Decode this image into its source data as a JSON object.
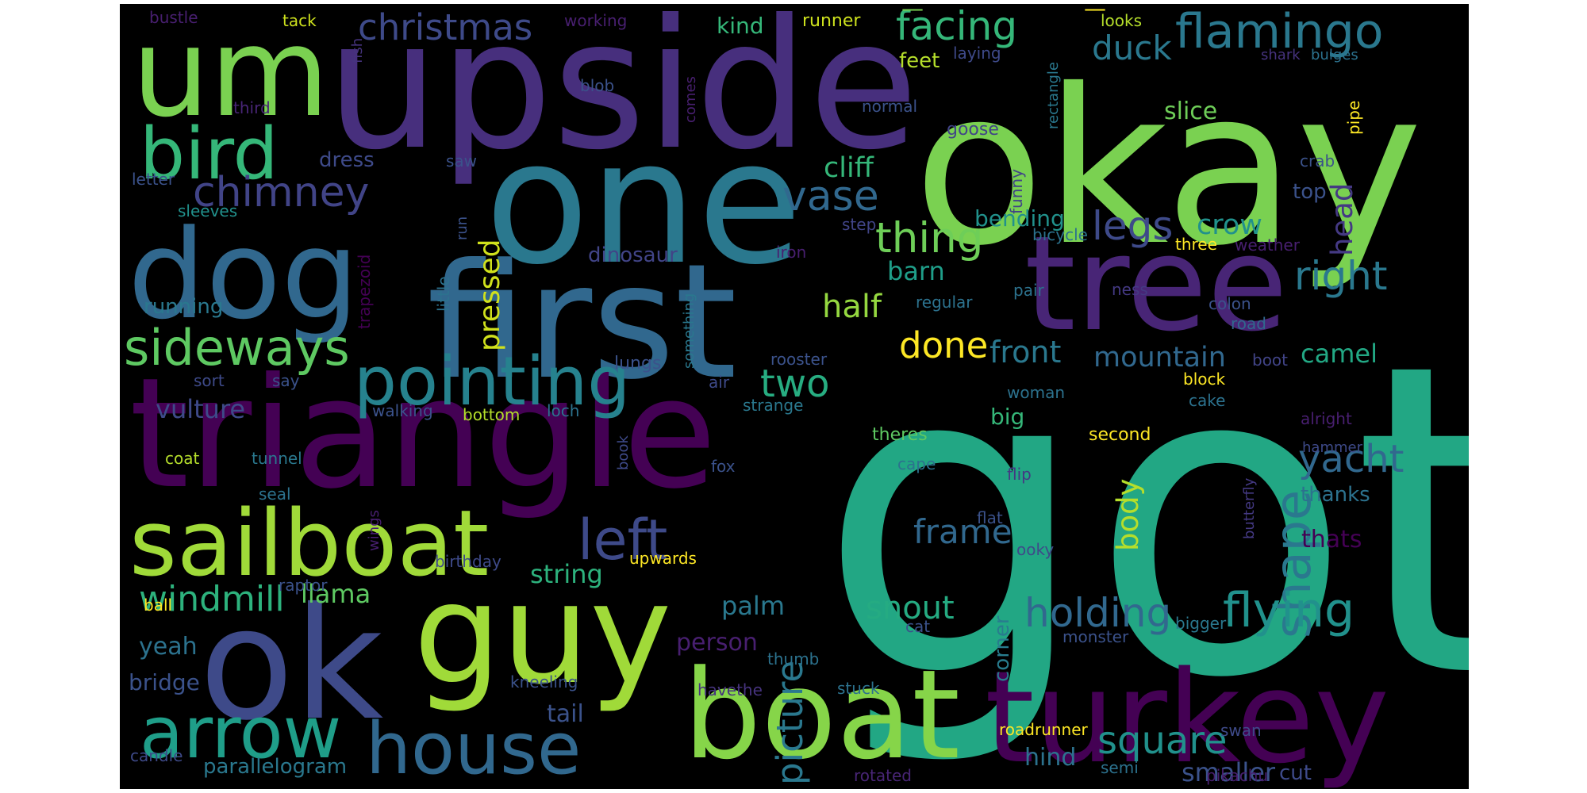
{
  "words": [
    {
      "id": "got",
      "text": "got",
      "color": "#22a784"
    },
    {
      "id": "okay",
      "text": "okay",
      "color": "#7ad151"
    },
    {
      "id": "upside",
      "text": "upside",
      "color": "#472f7d"
    },
    {
      "id": "one",
      "text": "one",
      "color": "#2a788e"
    },
    {
      "id": "first",
      "text": "first",
      "color": "#31688e"
    },
    {
      "id": "triangle",
      "text": "triangle",
      "color": "#440154"
    },
    {
      "id": "tree",
      "text": "tree",
      "color": "#482576"
    },
    {
      "id": "guy",
      "text": "guy",
      "color": "#a0da39"
    },
    {
      "id": "ok",
      "text": "ok",
      "color": "#3e4a89"
    },
    {
      "id": "turkey",
      "text": "turkey",
      "color": "#440154"
    },
    {
      "id": "boat",
      "text": "boat",
      "color": "#86d549"
    },
    {
      "id": "dog",
      "text": "dog",
      "color": "#31688e"
    },
    {
      "id": "um",
      "text": "um",
      "color": "#7ad151"
    },
    {
      "id": "sailboat",
      "text": "sailboat",
      "color": "#a0da39"
    },
    {
      "id": "bird",
      "text": "bird",
      "color": "#35b779"
    },
    {
      "id": "arrow",
      "text": "arrow",
      "color": "#1f9e89"
    },
    {
      "id": "house",
      "text": "house",
      "color": "#31688e"
    },
    {
      "id": "pointing",
      "text": "pointing",
      "color": "#26828e"
    },
    {
      "id": "sideways",
      "text": "sideways",
      "color": "#5ec962"
    },
    {
      "id": "flamingo",
      "text": "flamingo",
      "color": "#2a788e"
    },
    {
      "id": "shape",
      "text": "shape",
      "color": "#2a788e"
    },
    {
      "id": "left",
      "text": "left",
      "color": "#3e4a89"
    },
    {
      "id": "chimney",
      "text": "chimney",
      "color": "#414487"
    },
    {
      "id": "christmas",
      "text": "christmas",
      "color": "#3e4a89"
    },
    {
      "id": "facing",
      "text": "facing",
      "color": "#35b779"
    },
    {
      "id": "flying",
      "text": "flying",
      "color": "#21918c"
    },
    {
      "id": "holding",
      "text": "holding",
      "color": "#31688e"
    },
    {
      "id": "square",
      "text": "square",
      "color": "#21918c"
    },
    {
      "id": "vase",
      "text": "vase",
      "color": "#31688e"
    },
    {
      "id": "thing",
      "text": "thing",
      "color": "#6ece58"
    },
    {
      "id": "legs",
      "text": "legs",
      "color": "#3e4a89"
    },
    {
      "id": "right",
      "text": "right",
      "color": "#2a788e"
    },
    {
      "id": "two",
      "text": "two",
      "color": "#27ad81"
    },
    {
      "id": "windmill",
      "text": "windmill",
      "color": "#2db27d"
    },
    {
      "id": "yacht",
      "text": "yacht",
      "color": "#31688e"
    },
    {
      "id": "picture",
      "text": "picture",
      "color": "#2a788e"
    },
    {
      "id": "done",
      "text": "done",
      "color": "#fde725"
    },
    {
      "id": "duck",
      "text": "duck",
      "color": "#2a788e"
    },
    {
      "id": "pressed",
      "text": "pressed",
      "color": "#d0e11c"
    },
    {
      "id": "frame",
      "text": "frame",
      "color": "#31688e"
    },
    {
      "id": "half",
      "text": "half",
      "color": "#95d840"
    },
    {
      "id": "snout",
      "text": "snout",
      "color": "#25ab82"
    },
    {
      "id": "front",
      "text": "front",
      "color": "#2a788e"
    },
    {
      "id": "mountain",
      "text": "mountain",
      "color": "#31688e"
    },
    {
      "id": "vulture",
      "text": "vulture",
      "color": "#3e4a89"
    },
    {
      "id": "string",
      "text": "string",
      "color": "#2db27d"
    },
    {
      "id": "body",
      "text": "body",
      "color": "#b5de2b"
    },
    {
      "id": "llama",
      "text": "llama",
      "color": "#5ec962"
    },
    {
      "id": "head",
      "text": "head",
      "color": "#443983"
    },
    {
      "id": "cliff",
      "text": "cliff",
      "color": "#35b779"
    },
    {
      "id": "barn",
      "text": "barn",
      "color": "#1f9e89"
    },
    {
      "id": "crow",
      "text": "crow",
      "color": "#21918c"
    },
    {
      "id": "camel",
      "text": "camel",
      "color": "#22a884"
    },
    {
      "id": "palm",
      "text": "palm",
      "color": "#2a788e"
    },
    {
      "id": "person",
      "text": "person",
      "color": "#481f70"
    },
    {
      "id": "corner",
      "text": "corner",
      "color": "#287c8e"
    },
    {
      "id": "smaller",
      "text": "smaller",
      "color": "#3b528b"
    },
    {
      "id": "hind",
      "text": "hind",
      "color": "#2c728e"
    },
    {
      "id": "running",
      "text": "running",
      "color": "#2a788e"
    },
    {
      "id": "dinosaur",
      "text": "dinosaur",
      "color": "#414487"
    },
    {
      "id": "bending",
      "text": "bending",
      "color": "#21918c"
    },
    {
      "id": "dress",
      "text": "dress",
      "color": "#3e4a89"
    },
    {
      "id": "slice",
      "text": "slice",
      "color": "#6ece58"
    },
    {
      "id": "tail",
      "text": "tail",
      "color": "#3b528b"
    },
    {
      "id": "parallelogram",
      "text": "parallelogram",
      "color": "#2a788e"
    },
    {
      "id": "big",
      "text": "big",
      "color": "#35b779"
    },
    {
      "id": "bridge",
      "text": "bridge",
      "color": "#3b528b"
    },
    {
      "id": "yeah",
      "text": "yeah",
      "color": "#2c728e"
    },
    {
      "id": "feet",
      "text": "feet",
      "color": "#b5de2b"
    },
    {
      "id": "thats",
      "text": "thats",
      "color": "#440154"
    },
    {
      "id": "thanks",
      "text": "thanks",
      "color": "#2c728e"
    },
    {
      "id": "top",
      "text": "top",
      "color": "#3b528b"
    },
    {
      "id": "kind",
      "text": "kind",
      "color": "#35b779"
    },
    {
      "id": "runner",
      "text": "runner",
      "color": "#cde11d"
    },
    {
      "id": "laying",
      "text": "laying",
      "color": "#3e4a89"
    },
    {
      "id": "goose",
      "text": "goose",
      "color": "#414487"
    },
    {
      "id": "normal",
      "text": "normal",
      "color": "#3b528b"
    },
    {
      "id": "looks",
      "text": "looks",
      "color": "#b5de2b"
    },
    {
      "id": "shark",
      "text": "shark",
      "color": "#46337e"
    },
    {
      "id": "bulges",
      "text": "bulges",
      "color": "#2c728e"
    },
    {
      "id": "crab",
      "text": "crab",
      "color": "#3b528b"
    },
    {
      "id": "pipe",
      "text": "pipe",
      "color": "#fde725"
    },
    {
      "id": "working",
      "text": "working",
      "color": "#481f70"
    },
    {
      "id": "bustle",
      "text": "bustle",
      "color": "#481f70"
    },
    {
      "id": "tack",
      "text": "tack",
      "color": "#cde11d"
    },
    {
      "id": "fish",
      "text": "fish",
      "color": "#46337e"
    },
    {
      "id": "blob",
      "text": "blob",
      "color": "#3b528b"
    },
    {
      "id": "comes",
      "text": "comes",
      "color": "#481f70"
    },
    {
      "id": "third",
      "text": "third",
      "color": "#482576"
    },
    {
      "id": "saw",
      "text": "saw",
      "color": "#3b528b"
    },
    {
      "id": "letter",
      "text": "letter",
      "color": "#3b528b"
    },
    {
      "id": "sleeves",
      "text": "sleeves",
      "color": "#21918c"
    },
    {
      "id": "trapezoid",
      "text": "trapezoid",
      "color": "#440154"
    },
    {
      "id": "little",
      "text": "little",
      "color": "#2c728e"
    },
    {
      "id": "run",
      "text": "run",
      "color": "#3b528b"
    },
    {
      "id": "funny",
      "text": "funny",
      "color": "#414487"
    },
    {
      "id": "rectangle",
      "text": "rectangle",
      "color": "#2a788e"
    },
    {
      "id": "step",
      "text": "step",
      "color": "#414487"
    },
    {
      "id": "iron",
      "text": "iron",
      "color": "#481f70"
    },
    {
      "id": "bicycle",
      "text": "bicycle",
      "color": "#2c728e"
    },
    {
      "id": "three",
      "text": "three",
      "color": "#fde725"
    },
    {
      "id": "weather",
      "text": "weather",
      "color": "#481f70"
    },
    {
      "id": "pair",
      "text": "pair",
      "color": "#2c728e"
    },
    {
      "id": "regular",
      "text": "regular",
      "color": "#2c728e"
    },
    {
      "id": "ness",
      "text": "ness",
      "color": "#443983"
    },
    {
      "id": "colon",
      "text": "colon",
      "color": "#3b528b"
    },
    {
      "id": "road",
      "text": "road",
      "color": "#31688e"
    },
    {
      "id": "lungs",
      "text": "lungs",
      "color": "#3b528b"
    },
    {
      "id": "something",
      "text": "something",
      "color": "#2a788e"
    },
    {
      "id": "rooster",
      "text": "rooster",
      "color": "#3b528b"
    },
    {
      "id": "boot",
      "text": "boot",
      "color": "#414487"
    },
    {
      "id": "block",
      "text": "block",
      "color": "#fde725"
    },
    {
      "id": "cake",
      "text": "cake",
      "color": "#2c728e"
    },
    {
      "id": "woman",
      "text": "woman",
      "color": "#2c728e"
    },
    {
      "id": "air",
      "text": "air",
      "color": "#3e4a89"
    },
    {
      "id": "strange",
      "text": "strange",
      "color": "#2a788e"
    },
    {
      "id": "say",
      "text": "say",
      "color": "#3b528b"
    },
    {
      "id": "sort",
      "text": "sort",
      "color": "#3e4a89"
    },
    {
      "id": "walking",
      "text": "walking",
      "color": "#3b528b"
    },
    {
      "id": "bottom",
      "text": "bottom",
      "color": "#b5de2b"
    },
    {
      "id": "loch",
      "text": "loch",
      "color": "#2c728e"
    },
    {
      "id": "theres",
      "text": "theres",
      "color": "#5ec962"
    },
    {
      "id": "second",
      "text": "second",
      "color": "#fde725"
    },
    {
      "id": "alright",
      "text": "alright",
      "color": "#481f70"
    },
    {
      "id": "coat",
      "text": "coat",
      "color": "#b5de2b"
    },
    {
      "id": "tunnel",
      "text": "tunnel",
      "color": "#2a788e"
    },
    {
      "id": "book",
      "text": "book",
      "color": "#3e4a89"
    },
    {
      "id": "fox",
      "text": "fox",
      "color": "#3b528b"
    },
    {
      "id": "cape",
      "text": "cape",
      "color": "#2c728e"
    },
    {
      "id": "flip",
      "text": "flip",
      "color": "#443983"
    },
    {
      "id": "hammer",
      "text": "hammer",
      "color": "#3e4a89"
    },
    {
      "id": "seal",
      "text": "seal",
      "color": "#2c728e"
    },
    {
      "id": "butterfly",
      "text": "butterfly",
      "color": "#443983"
    },
    {
      "id": "flat",
      "text": "flat",
      "color": "#3b528b"
    },
    {
      "id": "ooky",
      "text": "ooky",
      "color": "#3e4a89"
    },
    {
      "id": "wings",
      "text": "wings",
      "color": "#481f70"
    },
    {
      "id": "birthday",
      "text": "birthday",
      "color": "#3e4a89"
    },
    {
      "id": "upwards",
      "text": "upwards",
      "color": "#fde725"
    },
    {
      "id": "raptor",
      "text": "raptor",
      "color": "#3b528b"
    },
    {
      "id": "ball",
      "text": "ball",
      "color": "#fde725"
    },
    {
      "id": "cat",
      "text": "cat",
      "color": "#3b528b"
    },
    {
      "id": "bigger",
      "text": "bigger",
      "color": "#2a788e"
    },
    {
      "id": "monster",
      "text": "monster",
      "color": "#3b528b"
    },
    {
      "id": "thumb",
      "text": "thumb",
      "color": "#2c728e"
    },
    {
      "id": "kneeling",
      "text": "kneeling",
      "color": "#3b528b"
    },
    {
      "id": "havethe",
      "text": "havethe",
      "color": "#46337e"
    },
    {
      "id": "stuck",
      "text": "stuck",
      "color": "#2c728e"
    },
    {
      "id": "roadrunner",
      "text": "roadrunner",
      "color": "#fde725"
    },
    {
      "id": "swan",
      "text": "swan",
      "color": "#3e4a89"
    },
    {
      "id": "candle",
      "text": "candle",
      "color": "#3e4a89"
    },
    {
      "id": "semi",
      "text": "semi",
      "color": "#2c728e"
    },
    {
      "id": "rotated",
      "text": "rotated",
      "color": "#482576"
    },
    {
      "id": "pikachu",
      "text": "pikachu",
      "color": "#481f70"
    },
    {
      "id": "cut",
      "text": "cut",
      "color": "#3e4a89"
    },
    {
      "id": "top-fragment-1",
      "text": "—",
      "color": "#7ad151"
    },
    {
      "id": "top-fragment-2",
      "text": "—",
      "color": "#fde725"
    }
  ]
}
